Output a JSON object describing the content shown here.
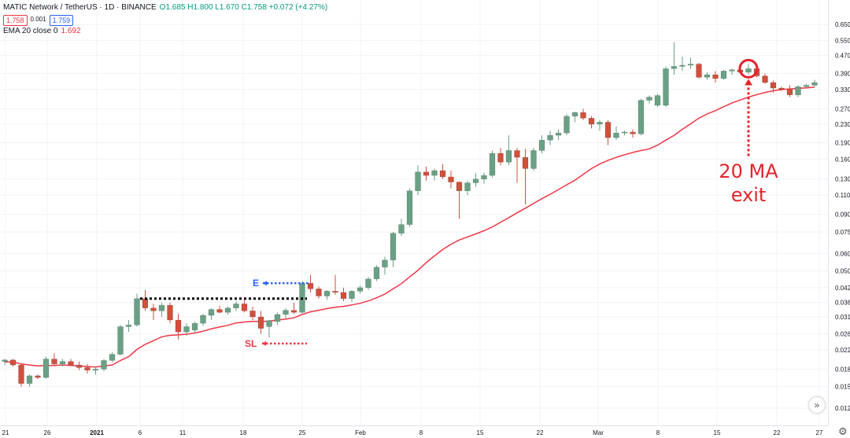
{
  "header": {
    "symbol": "MATIC Network / TetherUS · 1D · BINANCE",
    "ohlc": "O1.685 H1.800 L1.670 C1.758 +0.072 (+4.27%)",
    "bid": "1.758",
    "spread": "0.001",
    "ask": "1.759",
    "ema_label": "EMA 20 close 0",
    "ema_value": "1.692"
  },
  "icons": {
    "scroll_right": "double-chevron-right-icon",
    "settings": "gear-icon"
  },
  "colors": {
    "up": "#6aa184",
    "down": "#d0503c",
    "ema": "#f23645",
    "entry": "#2962ff",
    "stop": "#f23645",
    "level": "#000000"
  },
  "chart_data": {
    "type": "candlestick",
    "scale": "log",
    "y_ticks": [
      "0.650",
      "0.550",
      "0.470",
      "0.390",
      "0.330",
      "0.270",
      "0.230",
      "0.190",
      "0.160",
      "0.130",
      "0.110",
      "0.090",
      "0.075",
      "0.060",
      "0.050",
      "0.042",
      "0.036",
      "0.031",
      "0.026",
      "0.022",
      "0.018",
      "0.015",
      "0.012"
    ],
    "x_ticks": [
      "21",
      "26",
      "2021",
      "6",
      "11",
      "18",
      "25",
      "Feb",
      "8",
      "15",
      "22",
      "Mar",
      "8",
      "15",
      "22",
      "27"
    ],
    "grid": true,
    "candles": [
      [
        0.0195,
        0.02,
        0.0188,
        0.0198
      ],
      [
        0.0198,
        0.02,
        0.0185,
        0.0188
      ],
      [
        0.0188,
        0.019,
        0.015,
        0.0155
      ],
      [
        0.0155,
        0.017,
        0.015,
        0.0168
      ],
      [
        0.0168,
        0.017,
        0.0162,
        0.0165
      ],
      [
        0.0165,
        0.0205,
        0.0163,
        0.02
      ],
      [
        0.02,
        0.0212,
        0.0185,
        0.019
      ],
      [
        0.019,
        0.02,
        0.0185,
        0.0195
      ],
      [
        0.0195,
        0.02,
        0.0186,
        0.0188
      ],
      [
        0.0188,
        0.0195,
        0.0178,
        0.0183
      ],
      [
        0.0183,
        0.019,
        0.0172,
        0.0178
      ],
      [
        0.0178,
        0.0185,
        0.017,
        0.018
      ],
      [
        0.018,
        0.02,
        0.0176,
        0.0197
      ],
      [
        0.0197,
        0.0215,
        0.0193,
        0.021
      ],
      [
        0.021,
        0.0285,
        0.0208,
        0.028
      ],
      [
        0.028,
        0.03,
        0.0265,
        0.0285
      ],
      [
        0.0285,
        0.0395,
        0.028,
        0.0375
      ],
      [
        0.0375,
        0.041,
        0.033,
        0.034
      ],
      [
        0.034,
        0.0355,
        0.03,
        0.033
      ],
      [
        0.033,
        0.036,
        0.031,
        0.035
      ],
      [
        0.035,
        0.036,
        0.029,
        0.03
      ],
      [
        0.03,
        0.032,
        0.0245,
        0.0265
      ],
      [
        0.0265,
        0.029,
        0.0255,
        0.028
      ],
      [
        0.027,
        0.0295,
        0.0262,
        0.029
      ],
      [
        0.029,
        0.032,
        0.0282,
        0.0315
      ],
      [
        0.0315,
        0.034,
        0.03,
        0.0335
      ],
      [
        0.0335,
        0.0348,
        0.0322,
        0.0325
      ],
      [
        0.0325,
        0.0345,
        0.0318,
        0.034
      ],
      [
        0.034,
        0.0365,
        0.033,
        0.0355
      ],
      [
        0.0355,
        0.038,
        0.0325,
        0.033
      ],
      [
        0.033,
        0.0345,
        0.03,
        0.031
      ],
      [
        0.031,
        0.033,
        0.026,
        0.0275
      ],
      [
        0.028,
        0.03,
        0.025,
        0.0298
      ],
      [
        0.0295,
        0.0325,
        0.0285,
        0.0318
      ],
      [
        0.0318,
        0.034,
        0.0305,
        0.0332
      ],
      [
        0.0332,
        0.036,
        0.032,
        0.0325
      ],
      [
        0.0325,
        0.045,
        0.032,
        0.044
      ],
      [
        0.044,
        0.048,
        0.04,
        0.0415
      ],
      [
        0.0415,
        0.0425,
        0.0375,
        0.0385
      ],
      [
        0.0385,
        0.041,
        0.037,
        0.0405
      ],
      [
        0.0405,
        0.048,
        0.039,
        0.04
      ],
      [
        0.04,
        0.042,
        0.0365,
        0.0375
      ],
      [
        0.0375,
        0.041,
        0.0362,
        0.0405
      ],
      [
        0.0405,
        0.043,
        0.0395,
        0.042
      ],
      [
        0.042,
        0.047,
        0.041,
        0.046
      ],
      [
        0.046,
        0.053,
        0.045,
        0.052
      ],
      [
        0.052,
        0.058,
        0.048,
        0.056
      ],
      [
        0.056,
        0.075,
        0.052,
        0.074
      ],
      [
        0.074,
        0.086,
        0.072,
        0.081
      ],
      [
        0.081,
        0.118,
        0.079,
        0.115
      ],
      [
        0.115,
        0.15,
        0.11,
        0.14
      ],
      [
        0.14,
        0.148,
        0.128,
        0.135
      ],
      [
        0.135,
        0.145,
        0.128,
        0.142
      ],
      [
        0.142,
        0.152,
        0.13,
        0.133
      ],
      [
        0.133,
        0.142,
        0.118,
        0.126
      ],
      [
        0.126,
        0.127,
        0.086,
        0.115
      ],
      [
        0.115,
        0.128,
        0.11,
        0.125
      ],
      [
        0.125,
        0.138,
        0.12,
        0.13
      ],
      [
        0.13,
        0.139,
        0.124,
        0.135
      ],
      [
        0.135,
        0.175,
        0.132,
        0.17
      ],
      [
        0.17,
        0.18,
        0.15,
        0.155
      ],
      [
        0.155,
        0.205,
        0.15,
        0.175
      ],
      [
        0.175,
        0.18,
        0.125,
        0.163
      ],
      [
        0.163,
        0.178,
        0.1,
        0.145
      ],
      [
        0.145,
        0.18,
        0.142,
        0.175
      ],
      [
        0.175,
        0.205,
        0.17,
        0.195
      ],
      [
        0.195,
        0.215,
        0.185,
        0.205
      ],
      [
        0.205,
        0.218,
        0.195,
        0.21
      ],
      [
        0.21,
        0.255,
        0.205,
        0.25
      ],
      [
        0.25,
        0.262,
        0.235,
        0.26
      ],
      [
        0.26,
        0.27,
        0.24,
        0.245
      ],
      [
        0.245,
        0.25,
        0.22,
        0.23
      ],
      [
        0.23,
        0.24,
        0.215,
        0.235
      ],
      [
        0.235,
        0.24,
        0.185,
        0.2
      ],
      [
        0.2,
        0.225,
        0.195,
        0.21
      ],
      [
        0.21,
        0.215,
        0.205,
        0.212
      ],
      [
        0.212,
        0.218,
        0.2,
        0.208
      ],
      [
        0.208,
        0.3,
        0.205,
        0.295
      ],
      [
        0.295,
        0.31,
        0.285,
        0.305
      ],
      [
        0.28,
        0.315,
        0.275,
        0.31
      ],
      [
        0.28,
        0.42,
        0.275,
        0.41
      ],
      [
        0.41,
        0.54,
        0.385,
        0.42
      ],
      [
        0.42,
        0.465,
        0.4,
        0.425
      ],
      [
        0.425,
        0.46,
        0.41,
        0.43
      ],
      [
        0.43,
        0.435,
        0.37,
        0.375
      ],
      [
        0.375,
        0.395,
        0.365,
        0.385
      ],
      [
        0.385,
        0.4,
        0.355,
        0.37
      ],
      [
        0.37,
        0.405,
        0.365,
        0.4
      ],
      [
        0.4,
        0.41,
        0.385,
        0.405
      ],
      [
        0.405,
        0.415,
        0.39,
        0.395
      ],
      [
        0.395,
        0.43,
        0.385,
        0.41
      ],
      [
        0.41,
        0.42,
        0.375,
        0.38
      ],
      [
        0.38,
        0.39,
        0.35,
        0.355
      ],
      [
        0.355,
        0.362,
        0.32,
        0.335
      ],
      [
        0.335,
        0.34,
        0.325,
        0.33
      ],
      [
        0.33,
        0.345,
        0.305,
        0.312
      ],
      [
        0.312,
        0.345,
        0.305,
        0.34
      ],
      [
        0.34,
        0.35,
        0.335,
        0.345
      ],
      [
        0.345,
        0.365,
        0.34,
        0.355
      ]
    ],
    "ema": [
      0.0194,
      0.0194,
      0.019,
      0.0188,
      0.0186,
      0.0187,
      0.0187,
      0.0188,
      0.0187,
      0.0186,
      0.0185,
      0.0184,
      0.0186,
      0.0188,
      0.0197,
      0.0205,
      0.0221,
      0.0233,
      0.0242,
      0.0252,
      0.0256,
      0.0257,
      0.0259,
      0.0262,
      0.0267,
      0.0274,
      0.0279,
      0.0284,
      0.0291,
      0.0294,
      0.0296,
      0.0295,
      0.0297,
      0.03,
      0.0303,
      0.0307,
      0.0318,
      0.0327,
      0.0332,
      0.0338,
      0.0343,
      0.0346,
      0.0351,
      0.0357,
      0.0366,
      0.0378,
      0.0393,
      0.0415,
      0.0438,
      0.047,
      0.0503,
      0.0545,
      0.0585,
      0.0625,
      0.066,
      0.069,
      0.0712,
      0.0735,
      0.076,
      0.079,
      0.083,
      0.087,
      0.0915,
      0.096,
      0.101,
      0.106,
      0.111,
      0.1165,
      0.1225,
      0.1285,
      0.1365,
      0.145,
      0.152,
      0.158,
      0.163,
      0.1675,
      0.1715,
      0.175,
      0.178,
      0.185,
      0.195,
      0.205,
      0.218,
      0.231,
      0.245,
      0.256,
      0.265,
      0.276,
      0.287,
      0.296,
      0.305,
      0.313,
      0.32,
      0.326,
      0.33,
      0.332,
      0.334,
      0.336,
      0.338
    ],
    "level_price": 0.0375,
    "level_label": "",
    "entry_price": 0.044,
    "entry_label": "E",
    "stop_price": 0.0235,
    "stop_label": "SL",
    "exit_label_line1": "20 MA",
    "exit_label_line2": "exit",
    "exit_candle_index": 90
  }
}
